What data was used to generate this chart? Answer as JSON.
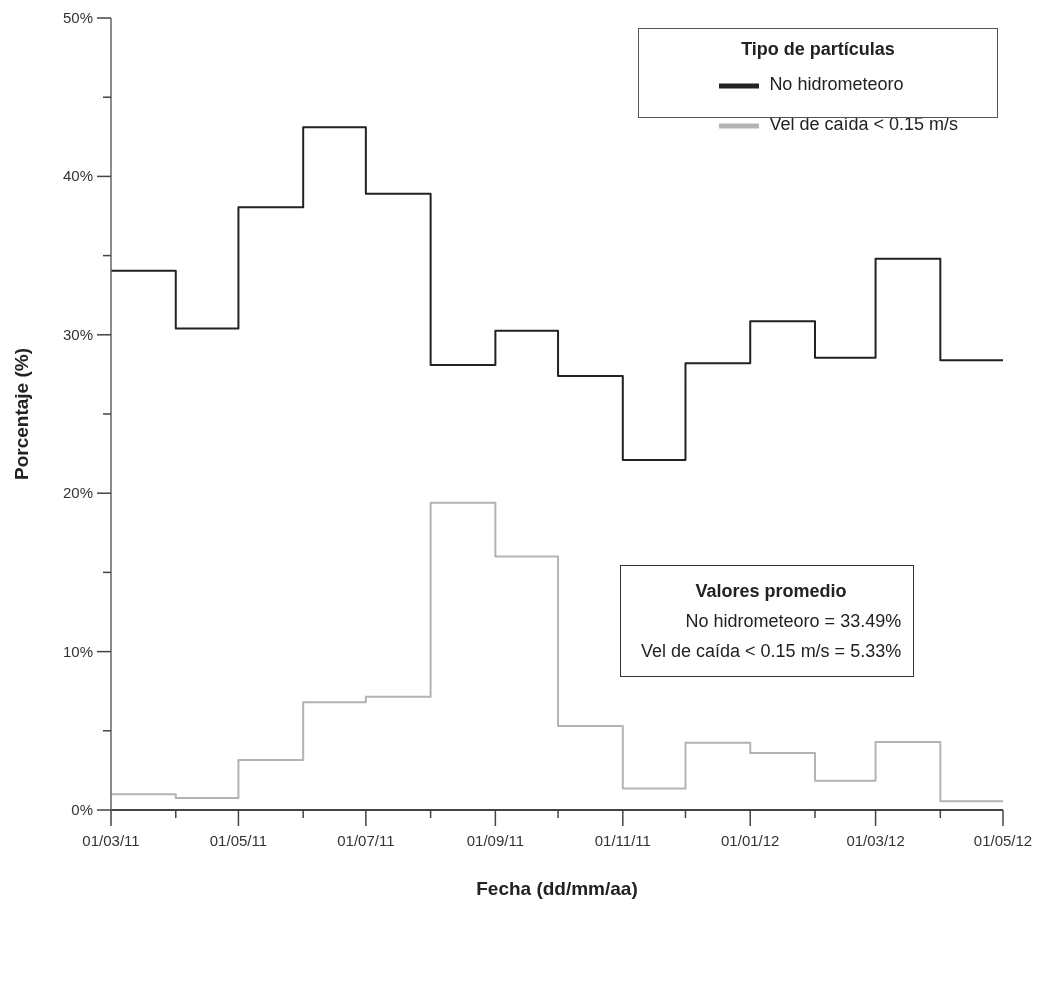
{
  "chart_data": {
    "type": "step",
    "xlabel": "Fecha (dd/mm/aa)",
    "ylabel": "Porcentaje (%)",
    "legend_title": "Tipo de partículas",
    "x": [
      "2011-03-01",
      "2011-04-01",
      "2011-05-01",
      "2011-06-01",
      "2011-07-01",
      "2011-08-01",
      "2011-09-01",
      "2011-10-01",
      "2011-11-01",
      "2011-12-01",
      "2012-01-01",
      "2012-02-01",
      "2012-03-01",
      "2012-04-01",
      "2012-05-01"
    ],
    "series": [
      {
        "name": "No hidrometeoro",
        "color": "#222222",
        "values": [
          34.05,
          30.4,
          38.05,
          43.1,
          38.9,
          28.1,
          30.25,
          27.4,
          22.1,
          28.2,
          30.85,
          28.55,
          34.8,
          28.4,
          28.4
        ]
      },
      {
        "name": "Vel de caída < 0.15 m/s",
        "color": "#b3b3b3",
        "values": [
          1.0,
          0.75,
          3.15,
          6.8,
          7.15,
          19.4,
          16.0,
          5.3,
          1.35,
          4.25,
          3.6,
          1.85,
          4.3,
          0.55,
          0.55
        ]
      }
    ],
    "xlim": [
      "2011-03-01",
      "2012-05-01"
    ],
    "xticks": [
      {
        "value": "2011-03-01",
        "label": "01/03/11"
      },
      {
        "value": "2011-04-01",
        "label": null
      },
      {
        "value": "2011-05-01",
        "label": "01/05/11"
      },
      {
        "value": "2011-06-01",
        "label": null
      },
      {
        "value": "2011-07-01",
        "label": "01/07/11"
      },
      {
        "value": "2011-08-01",
        "label": null
      },
      {
        "value": "2011-09-01",
        "label": "01/09/11"
      },
      {
        "value": "2011-10-01",
        "label": null
      },
      {
        "value": "2011-11-01",
        "label": "01/11/11"
      },
      {
        "value": "2011-12-01",
        "label": null
      },
      {
        "value": "2012-01-01",
        "label": "01/01/12"
      },
      {
        "value": "2012-02-01",
        "label": null
      },
      {
        "value": "2012-03-01",
        "label": "01/03/12"
      },
      {
        "value": "2012-04-01",
        "label": null
      },
      {
        "value": "2012-05-01",
        "label": "01/05/12"
      }
    ],
    "ylim": [
      0,
      50
    ],
    "yticks": [
      {
        "value": 0,
        "label": "0%"
      },
      {
        "value": 5,
        "label": null
      },
      {
        "value": 10,
        "label": "10%"
      },
      {
        "value": 15,
        "label": null
      },
      {
        "value": 20,
        "label": "20%"
      },
      {
        "value": 25,
        "label": null
      },
      {
        "value": 30,
        "label": "30%"
      },
      {
        "value": 35,
        "label": null
      },
      {
        "value": 40,
        "label": "40%"
      },
      {
        "value": 45,
        "label": null
      },
      {
        "value": 50,
        "label": "50%"
      }
    ],
    "grid": false,
    "legend": "top right",
    "marker": "none",
    "line_style": "solid",
    "annotations": [
      "Valores promedio",
      "No hidrometeoro = 33.49%",
      "Vel de caída < 0.15 m/s = 5.33%"
    ]
  }
}
